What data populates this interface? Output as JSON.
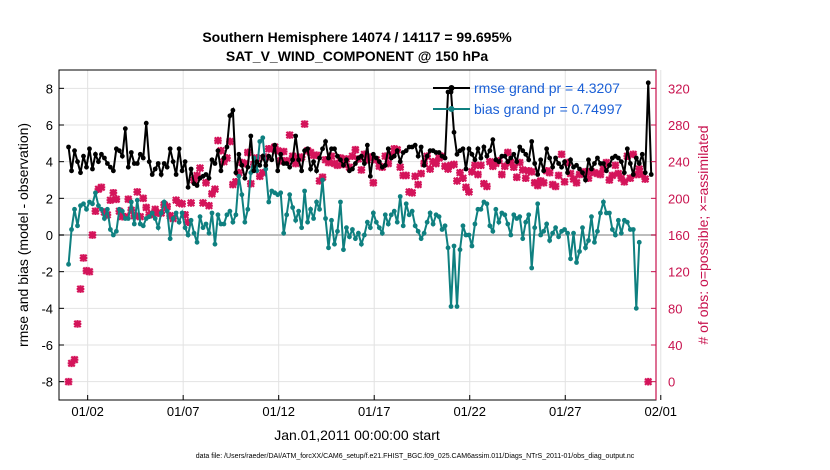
{
  "chart_data": {
    "type": "line",
    "title": "Southern Hemisphere 14074 / 14117 = 99.695%",
    "subtitle": "SAT_V_WIND_COMPONENT @ 150 hPa",
    "xlabel": "Jan.01,2011 00:00:00 start",
    "ylabel_left": "rmse and bias (model - observation)",
    "ylabel_right": "# of obs: o=possible; ×=assimilated",
    "footnote": "data file: /Users/raeder/DAI/ATM_forcXX/CAM6_setup/f.e21.FHIST_BGC.f09_025.CAM6assim.011/Diags_NTrS_2011-01/obs_diag_output.nc",
    "xlim": [
      0.5,
      31.75
    ],
    "ylim_left": [
      -9,
      9
    ],
    "ylim_right": [
      -20,
      340
    ],
    "x_ticks": [
      2,
      7,
      12,
      17,
      22,
      27,
      32
    ],
    "x_tick_labels": [
      "01/02",
      "01/07",
      "01/12",
      "01/17",
      "01/22",
      "01/27",
      "02/01"
    ],
    "y_ticks_left": [
      -8,
      -6,
      -4,
      -2,
      0,
      2,
      4,
      6,
      8
    ],
    "y_ticks_right": [
      0,
      40,
      80,
      120,
      160,
      200,
      240,
      280,
      320
    ],
    "grid": true,
    "legend_position": "top-right",
    "colors": {
      "rmse": "#000000",
      "bias": "#0f8080",
      "count": "#d4145a",
      "right_axis": "#c8124e",
      "legend_text": "#1a5fd6",
      "zero_line": "#bdbdbd",
      "grid": "#e2e2e2"
    },
    "series": [
      {
        "name": "rmse grand pr = 4.3207",
        "values": [
          4.8,
          3.5,
          4.6,
          4.0,
          3.4,
          4.3,
          3.7,
          4.7,
          3.6,
          4.4,
          4.0,
          4.4,
          4.2,
          3.9,
          3.7,
          3.5,
          4.7,
          4.6,
          4.3,
          5.8,
          3.7,
          4.5,
          3.9,
          3.9,
          4.4,
          4.2,
          6.1,
          4.0,
          3.3,
          3.6,
          3.9,
          3.3,
          3.9,
          3.7,
          4.7,
          4.0,
          3.3,
          4.7,
          3.5,
          4.0,
          2.6,
          3.6,
          2.8,
          2.7,
          3.1,
          3.2,
          3.3,
          3.1,
          4.1,
          3.9,
          4.6,
          3.5,
          4.2,
          4.8,
          6.5,
          6.8,
          3.4,
          4.4,
          3.8,
          3.1,
          3.7,
          5.4,
          3.5,
          4.0,
          3.8,
          4.3,
          3.8,
          4.3,
          4.1,
          4.9,
          3.5,
          4.4,
          3.9,
          3.9,
          3.7,
          4.1,
          5.4,
          4.1,
          3.5,
          4.6,
          4.7,
          3.6,
          4.0,
          3.5,
          4.2,
          4.7,
          5.1,
          4.2,
          4.7,
          4.7,
          4.3,
          4.1,
          3.8,
          4.1,
          3.5,
          3.6,
          3.9,
          4.2,
          4.3,
          3.9,
          4.9,
          3.2,
          4.4,
          4.2,
          4.0,
          3.7,
          3.8,
          4.7,
          4.2,
          4.3,
          4.6,
          4.0,
          4.5,
          4.6,
          4.8,
          4.8,
          4.9,
          4.3,
          4.8,
          3.8,
          4.3,
          4.6,
          4.6,
          4.5,
          4.5,
          4.3,
          4.2,
          7.8,
          7.8,
          5.6,
          4.4,
          4.6,
          4.7,
          3.6,
          4.7,
          4.4,
          4.1,
          4.7,
          4.2,
          4.8,
          4.3,
          4.6,
          5.2,
          4.1,
          4.0,
          4.3,
          4.3,
          4.0,
          4.2,
          4.4,
          4.0,
          4.8,
          4.6,
          4.4,
          4.1,
          5.1,
          3.9,
          3.3,
          4.1,
          3.5,
          4.7,
          4.2,
          3.7,
          4.2,
          3.9,
          3.7,
          4.0,
          3.4,
          4.1,
          3.7,
          3.8,
          3.6,
          3.4,
          3.0,
          4.1,
          3.6,
          3.9,
          4.2,
          3.9,
          3.9,
          3.5,
          3.8,
          4.2,
          4.3,
          4.2,
          4.0,
          3.4,
          4.7,
          3.9,
          3.3,
          4.2,
          3.9,
          4.4,
          3.4,
          8.3,
          3.3
        ]
      },
      {
        "name": "bias grand pr = 0.74997",
        "values": [
          -1.6,
          0.3,
          1.4,
          0.5,
          1.6,
          1.7,
          1.4,
          1.8,
          1.7,
          2.3,
          1.6,
          1.4,
          0.9,
          1.4,
          0.3,
          0.0,
          0.2,
          1.4,
          1.3,
          0.9,
          0.9,
          1.8,
          0.6,
          1.9,
          0.6,
          0.5,
          0.9,
          1.0,
          1.2,
          0.9,
          0.4,
          1.2,
          1.8,
          1.3,
          -0.2,
          0.9,
          1.2,
          0.7,
          1.2,
          0.4,
          0.0,
          0.8,
          0.1,
          -0.4,
          1.0,
          0.4,
          0.6,
          0.1,
          1.2,
          -0.5,
          1.1,
          0.6,
          0.6,
          1.1,
          1.3,
          0.7,
          1.1,
          3.2,
          2.2,
          0.7,
          1.4,
          3.4,
          4.2,
          3.5,
          5.1,
          5.3,
          3.6,
          1.8,
          2.4,
          2.3,
          2.2,
          2.3,
          0.1,
          1.1,
          2.2,
          1.5,
          0.8,
          1.3,
          0.4,
          2.4,
          0.7,
          1.4,
          0.9,
          1.8,
          1.4,
          3.0,
          0.9,
          -0.7,
          0.8,
          -0.5,
          0.2,
          1.8,
          -0.8,
          0.4,
          -0.1,
          0.3,
          -0.2,
          0.1,
          -0.5,
          0.0,
          0.7,
          0.4,
          1.2,
          0.7,
          0.4,
          0.1,
          1.1,
          0.6,
          1.1,
          1.3,
          0.7,
          2.1,
          0.5,
          1.7,
          1.1,
          1.3,
          0.5,
          0.2,
          -0.2,
          0.1,
          0.7,
          1.2,
          0.6,
          1.1,
          1.0,
          0.3,
          0.5,
          -0.7,
          -3.9,
          -0.6,
          -3.9,
          -0.8,
          0.5,
          0.0,
          0.0,
          -0.6,
          0.6,
          1.4,
          1.4,
          1.8,
          1.7,
          0.5,
          0.2,
          1.4,
          0.7,
          1.2,
          1.1,
          0.6,
          0.0,
          1.1,
          0.9,
          1.0,
          -0.2,
          0.7,
          1.1,
          -1.8,
          0.4,
          1.7,
          0.0,
          0.2,
          0.6,
          -0.3,
          0.1,
          0.4,
          -0.1,
          0.2,
          0.3,
          0.1,
          -1.3,
          0.1,
          -1.5,
          -0.9,
          0.4,
          -0.7,
          -0.3,
          1.0,
          -0.4,
          0.2,
          1.2,
          1.8,
          1.2,
          1.2,
          0.3,
          0.0,
          0.8,
          0.1,
          0.8,
          0.7,
          0.3,
          0.3,
          -4.0,
          -0.4
        ]
      },
      {
        "name": "# of obs assimilated",
        "values": [
          0,
          20,
          24,
          63,
          101,
          135,
          121,
          120,
          160,
          186,
          210,
          212,
          185,
          182,
          198,
          206,
          199,
          186,
          180,
          180,
          199,
          187,
          181,
          207,
          180,
          200,
          190,
          182,
          183,
          188,
          184,
          184,
          193,
          191,
          181,
          178,
          198,
          195,
          194,
          182,
          174,
          195,
          220,
          225,
          233,
          195,
          217,
          192,
          205,
          210,
          263,
          252,
          240,
          244,
          262,
          215,
          218,
          228,
          239,
          238,
          250,
          216,
          237,
          244,
          224,
          228,
          245,
          254,
          254,
          256,
          252,
          241,
          251,
          241,
          269,
          246,
          238,
          244,
          245,
          281,
          252,
          250,
          247,
          247,
          219,
          223,
          242,
          239,
          246,
          238,
          236,
          244,
          237,
          243,
          234,
          246,
          253,
          243,
          231,
          248,
          242,
          245,
          217,
          242,
          235,
          234,
          246,
          238,
          247,
          254,
          253,
          234,
          225,
          225,
          207,
          206,
          224,
          215,
          227,
          238,
          246,
          232,
          240,
          238,
          244,
          246,
          235,
          232,
          236,
          237,
          219,
          228,
          222,
          212,
          207,
          229,
          236,
          226,
          236,
          216,
          213,
          240,
          235,
          238,
          241,
          226,
          235,
          250,
          239,
          234,
          223,
          239,
          231,
          222,
          230,
          229,
          217,
          214,
          219,
          217,
          230,
          228,
          215,
          213,
          225,
          248,
          218,
          239,
          227,
          221,
          217,
          226,
          228,
          229,
          222,
          229,
          228,
          227,
          226,
          232,
          239,
          220,
          225,
          236,
          227,
          222,
          218,
          246,
          222,
          248,
          226,
          232,
          226,
          221,
          0
        ]
      }
    ]
  }
}
